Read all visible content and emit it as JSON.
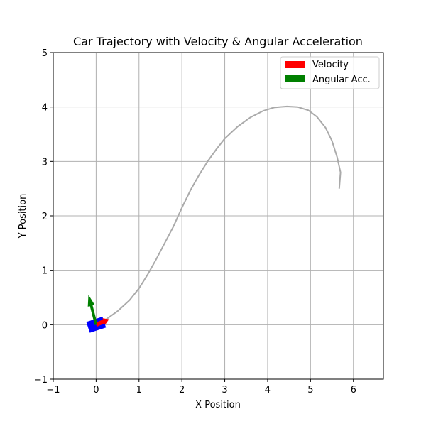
{
  "chart_data": {
    "type": "line",
    "title": "Car Trajectory with Velocity & Angular Acceleration",
    "xlabel": "X Position",
    "ylabel": "Y Position",
    "xlim": [
      -1,
      6.7
    ],
    "ylim": [
      -1,
      5
    ],
    "xticks": [
      -1,
      0,
      1,
      2,
      3,
      4,
      5,
      6
    ],
    "yticks": [
      -1,
      0,
      1,
      2,
      3,
      4,
      5
    ],
    "xtick_labels": [
      "−1",
      "0",
      "1",
      "2",
      "3",
      "4",
      "5",
      "6"
    ],
    "ytick_labels": [
      "−1",
      "0",
      "1",
      "2",
      "3",
      "4",
      "5"
    ],
    "grid": true,
    "legend_placement": "top-right",
    "legend": [
      {
        "label": "Velocity",
        "color": "#ff0000"
      },
      {
        "label": "Angular Acc.",
        "color": "#008000"
      }
    ],
    "trajectory": {
      "color": "#aaaaaa",
      "x": [
        0.0,
        0.2,
        0.5,
        0.78,
        1.0,
        1.2,
        1.4,
        1.6,
        1.8,
        2.0,
        2.2,
        2.4,
        2.6,
        2.8,
        3.0,
        3.3,
        3.6,
        3.9,
        4.15,
        4.45,
        4.7,
        4.95,
        5.15,
        5.35,
        5.5,
        5.62,
        5.7,
        5.67
      ],
      "y": [
        0.0,
        0.08,
        0.25,
        0.45,
        0.67,
        0.92,
        1.2,
        1.5,
        1.8,
        2.15,
        2.47,
        2.75,
        3.0,
        3.22,
        3.42,
        3.64,
        3.81,
        3.93,
        3.99,
        4.01,
        4.0,
        3.94,
        3.82,
        3.62,
        3.38,
        3.08,
        2.8,
        2.5
      ]
    },
    "car": {
      "x": 0.0,
      "y": 0.0,
      "color": "#0000ff"
    },
    "velocity_vector": {
      "x": 0.0,
      "y": 0.0,
      "dx": 0.3,
      "dy": 0.1,
      "color": "#ff0000"
    },
    "angular_acc_vector": {
      "x": 0.0,
      "y": 0.0,
      "dx": -0.18,
      "dy": 0.55,
      "color": "#008000"
    }
  }
}
